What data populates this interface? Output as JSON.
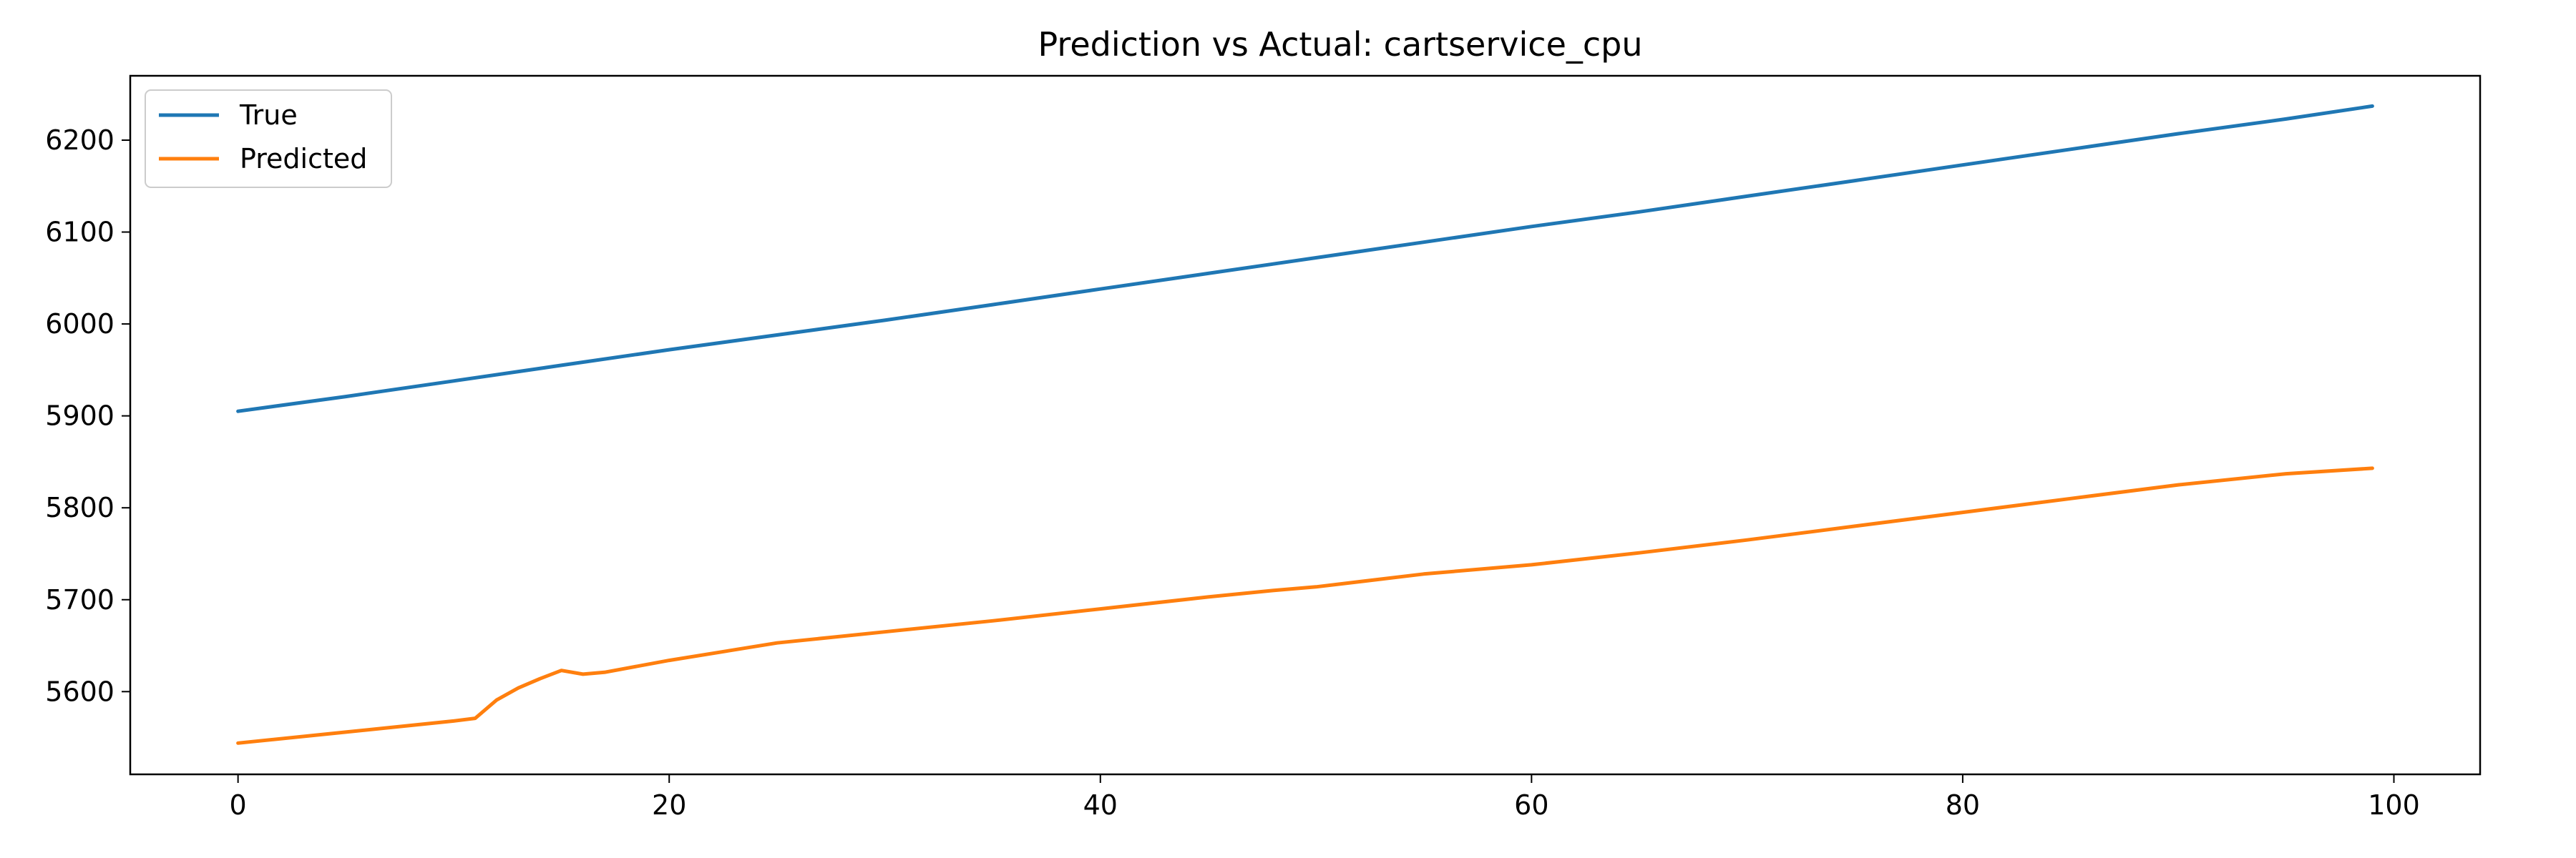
{
  "chart_data": {
    "type": "line",
    "title": "Prediction vs Actual: cartservice_cpu",
    "xlabel": "",
    "ylabel": "",
    "xlim": [
      -5,
      104
    ],
    "ylim": [
      5510,
      6270
    ],
    "xticks": [
      0,
      20,
      40,
      60,
      80,
      100
    ],
    "yticks": [
      5600,
      5700,
      5800,
      5900,
      6000,
      6100,
      6200
    ],
    "grid": false,
    "legend_position": "upper-left",
    "series": [
      {
        "name": "True",
        "color": "#1f77b4",
        "x": [
          0,
          5,
          10,
          15,
          20,
          25,
          30,
          35,
          40,
          45,
          50,
          55,
          60,
          65,
          70,
          75,
          80,
          85,
          90,
          95,
          99
        ],
        "y": [
          5905,
          5921,
          5938,
          5955,
          5972,
          5988,
          6004,
          6021,
          6038,
          6055,
          6072,
          6089,
          6106,
          6122,
          6139,
          6156,
          6173,
          6190,
          6207,
          6223,
          6237
        ]
      },
      {
        "name": "Predicted",
        "color": "#ff7f0e",
        "x": [
          0,
          5,
          10,
          11,
          12,
          13,
          14,
          15,
          16,
          17,
          20,
          25,
          30,
          35,
          40,
          45,
          48,
          50,
          55,
          60,
          65,
          70,
          75,
          80,
          85,
          90,
          95,
          99
        ],
        "y": [
          5544,
          5556,
          5568,
          5571,
          5591,
          5604,
          5614,
          5623,
          5619,
          5621,
          5634,
          5653,
          5665,
          5677,
          5690,
          5703,
          5710,
          5714,
          5728,
          5738,
          5751,
          5765,
          5780,
          5795,
          5810,
          5825,
          5837,
          5843
        ]
      }
    ]
  }
}
